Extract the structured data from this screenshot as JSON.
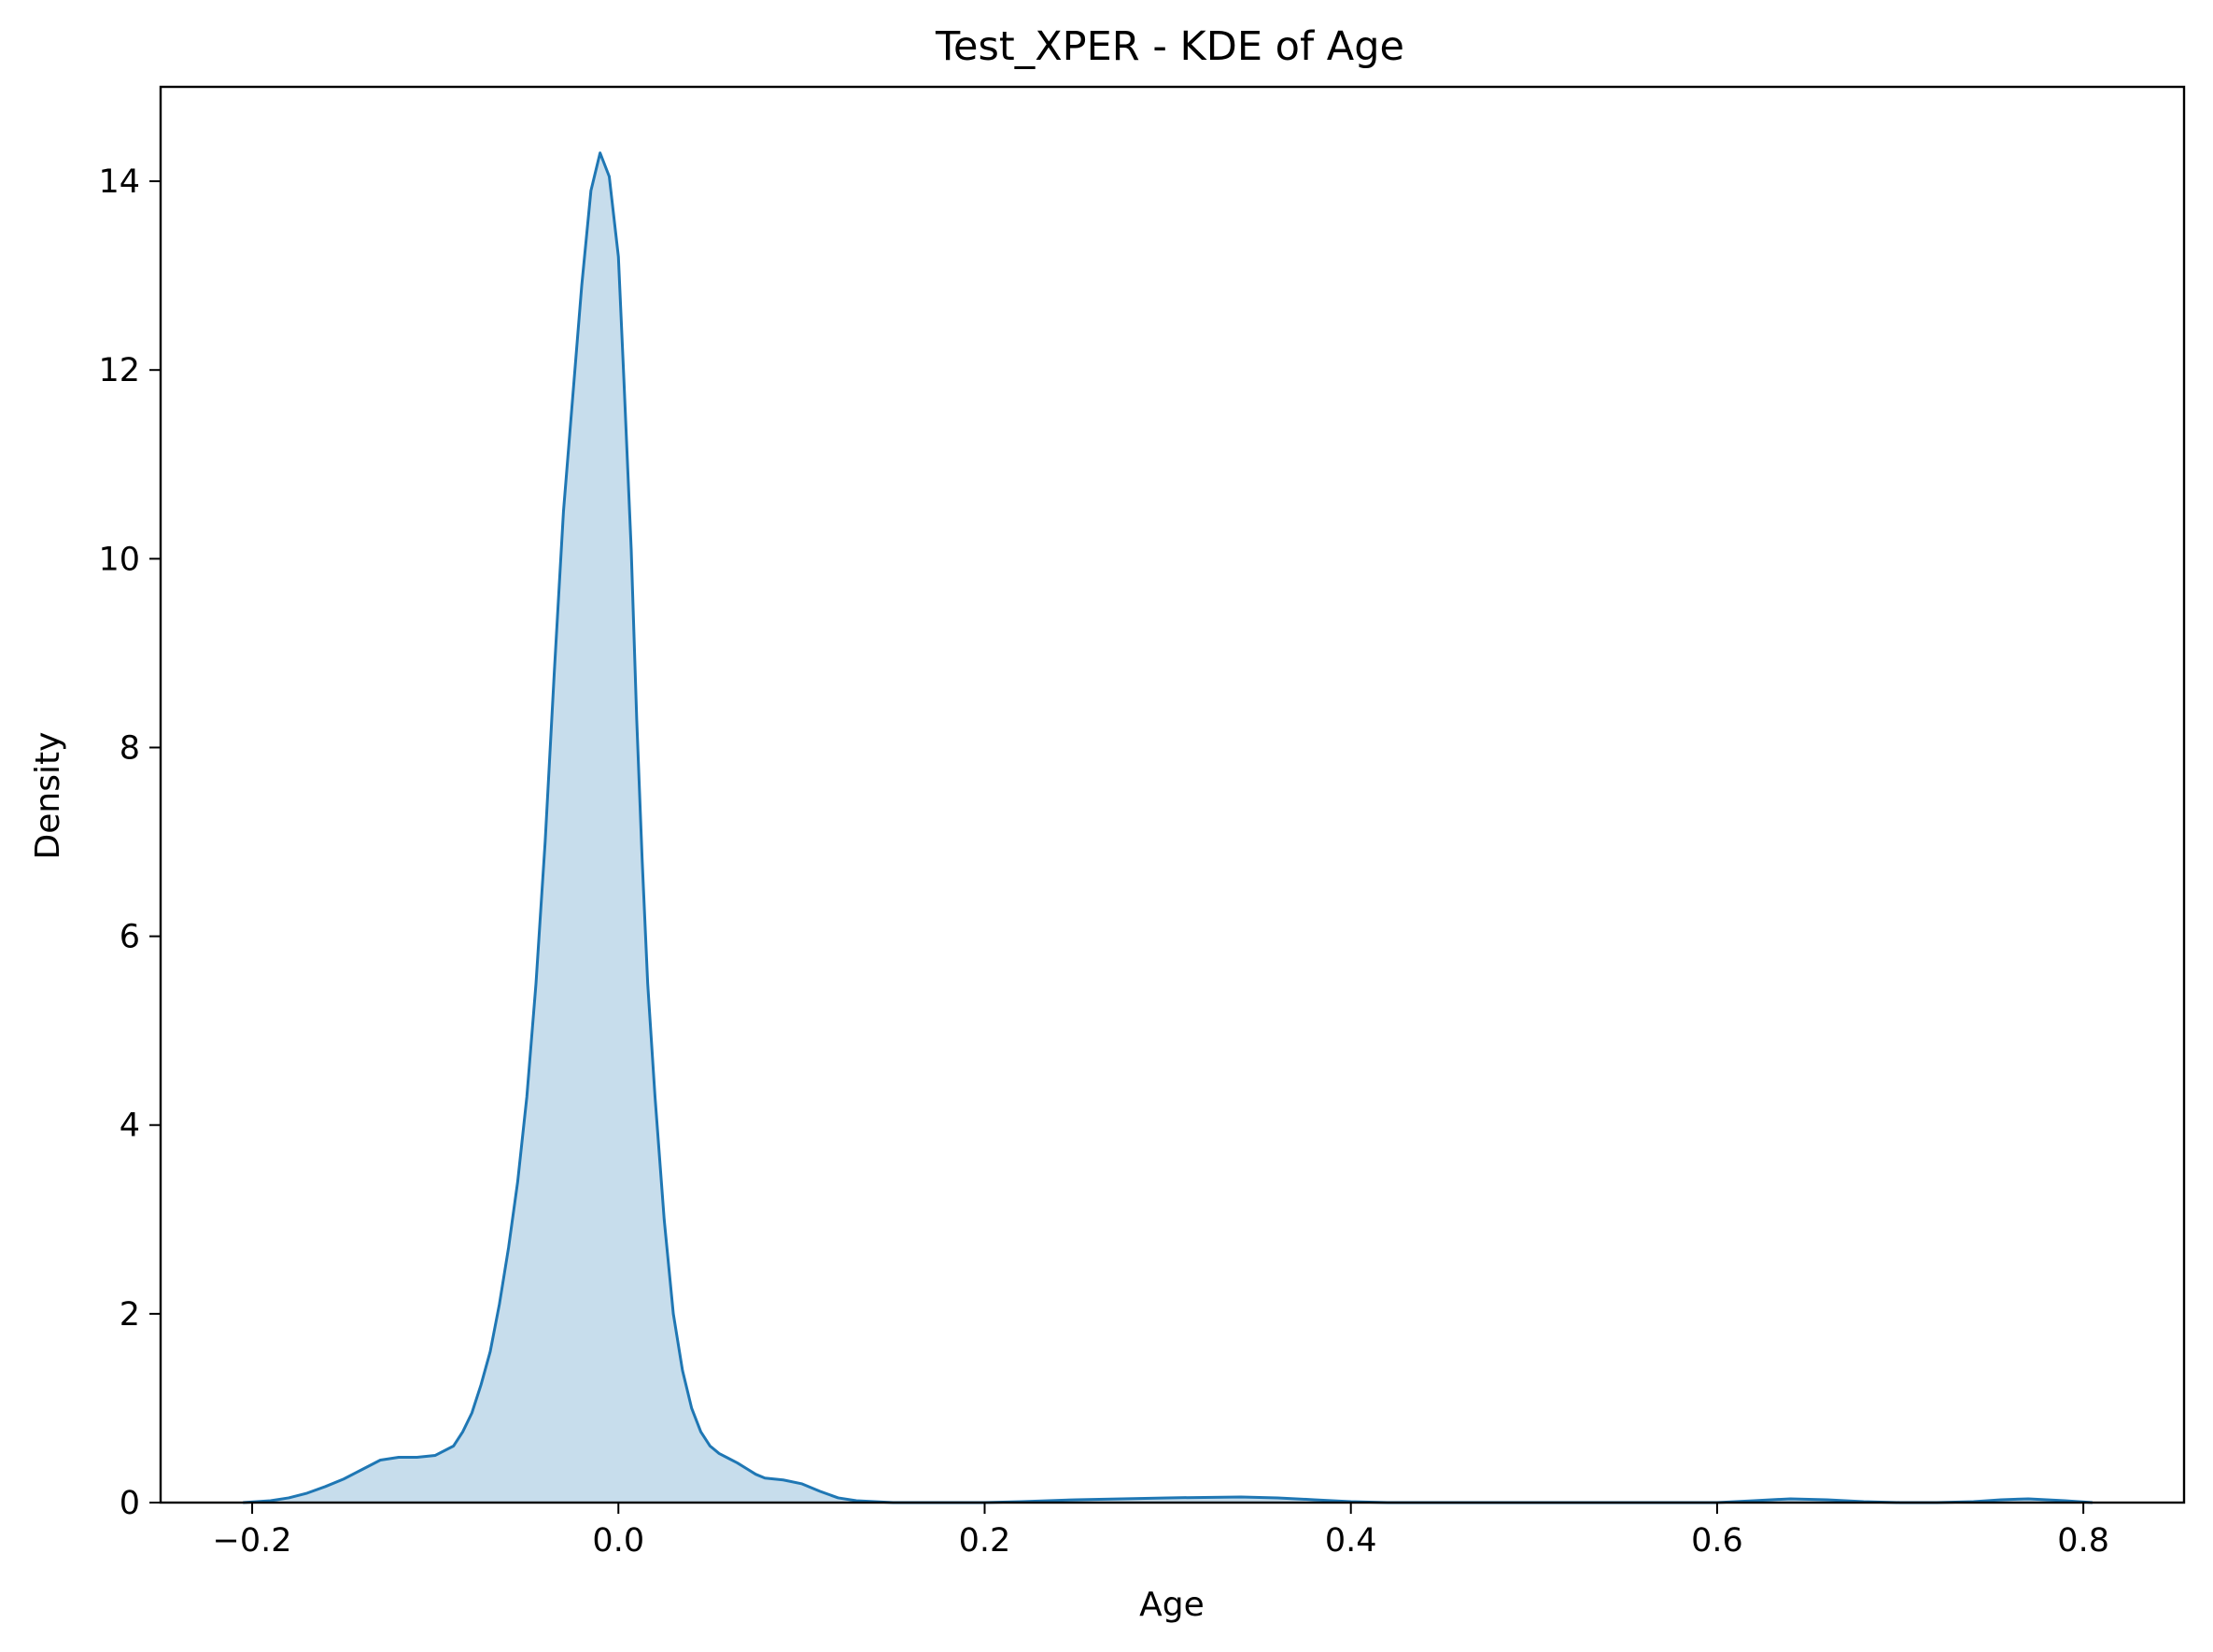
{
  "colors": {
    "line": "#1f77b4",
    "fill": "#1f77b4",
    "background": "#ffffff",
    "axes": "#000000"
  },
  "chart_data": {
    "type": "area",
    "title": "Test_XPER - KDE of Age",
    "xlabel": "Age",
    "ylabel": "Density",
    "xlim": [
      -0.25,
      0.855
    ],
    "ylim": [
      0,
      15
    ],
    "grid": false,
    "legend": "none",
    "fill_opacity": 0.25,
    "xticks": [
      {
        "value": -0.2,
        "label": "−0.2"
      },
      {
        "value": 0.0,
        "label": "0.0"
      },
      {
        "value": 0.2,
        "label": "0.2"
      },
      {
        "value": 0.4,
        "label": "0.4"
      },
      {
        "value": 0.6,
        "label": "0.6"
      },
      {
        "value": 0.8,
        "label": "0.8"
      }
    ],
    "yticks": [
      {
        "value": 0,
        "label": "0"
      },
      {
        "value": 2,
        "label": "2"
      },
      {
        "value": 4,
        "label": "4"
      },
      {
        "value": 6,
        "label": "6"
      },
      {
        "value": 8,
        "label": "8"
      },
      {
        "value": 10,
        "label": "10"
      },
      {
        "value": 12,
        "label": "12"
      },
      {
        "value": 14,
        "label": "14"
      }
    ],
    "series": [
      {
        "x": [
          -0.205,
          -0.19,
          -0.18,
          -0.17,
          -0.16,
          -0.15,
          -0.14,
          -0.13,
          -0.12,
          -0.11,
          -0.1,
          -0.09,
          -0.085,
          -0.08,
          -0.075,
          -0.07,
          -0.065,
          -0.06,
          -0.055,
          -0.05,
          -0.045,
          -0.04,
          -0.035,
          -0.03,
          -0.025,
          -0.02,
          -0.015,
          -0.01,
          -0.005,
          0.0,
          0.003,
          0.007,
          0.01,
          0.013,
          0.016,
          0.02,
          0.025,
          0.03,
          0.035,
          0.04,
          0.045,
          0.05,
          0.055,
          0.06,
          0.065,
          0.07,
          0.075,
          0.08,
          0.085,
          0.09,
          0.1,
          0.11,
          0.12,
          0.13,
          0.14,
          0.15,
          0.16,
          0.17,
          0.18,
          0.19,
          0.2,
          0.22,
          0.25,
          0.3,
          0.34,
          0.36,
          0.38,
          0.4,
          0.42,
          0.44,
          0.46,
          0.5,
          0.55,
          0.6,
          0.62,
          0.64,
          0.66,
          0.68,
          0.7,
          0.72,
          0.74,
          0.755,
          0.77,
          0.79,
          0.805
        ],
        "y": [
          0.0,
          0.02,
          0.05,
          0.1,
          0.17,
          0.25,
          0.35,
          0.45,
          0.48,
          0.48,
          0.5,
          0.6,
          0.75,
          0.95,
          1.25,
          1.6,
          2.1,
          2.7,
          3.4,
          4.3,
          5.5,
          7.0,
          8.8,
          10.5,
          11.7,
          12.9,
          13.9,
          14.3,
          14.05,
          13.2,
          11.9,
          10.1,
          8.3,
          6.8,
          5.5,
          4.3,
          3.0,
          2.0,
          1.4,
          1.0,
          0.75,
          0.6,
          0.52,
          0.47,
          0.42,
          0.36,
          0.3,
          0.26,
          0.25,
          0.24,
          0.2,
          0.12,
          0.05,
          0.02,
          0.01,
          0.0,
          0.0,
          0.0,
          0.0,
          0.0,
          0.0,
          0.01,
          0.03,
          0.05,
          0.06,
          0.05,
          0.03,
          0.01,
          0.0,
          0.0,
          0.0,
          0.0,
          0.0,
          0.0,
          0.02,
          0.04,
          0.03,
          0.01,
          0.0,
          0.0,
          0.01,
          0.03,
          0.04,
          0.02,
          0.0
        ]
      }
    ]
  }
}
